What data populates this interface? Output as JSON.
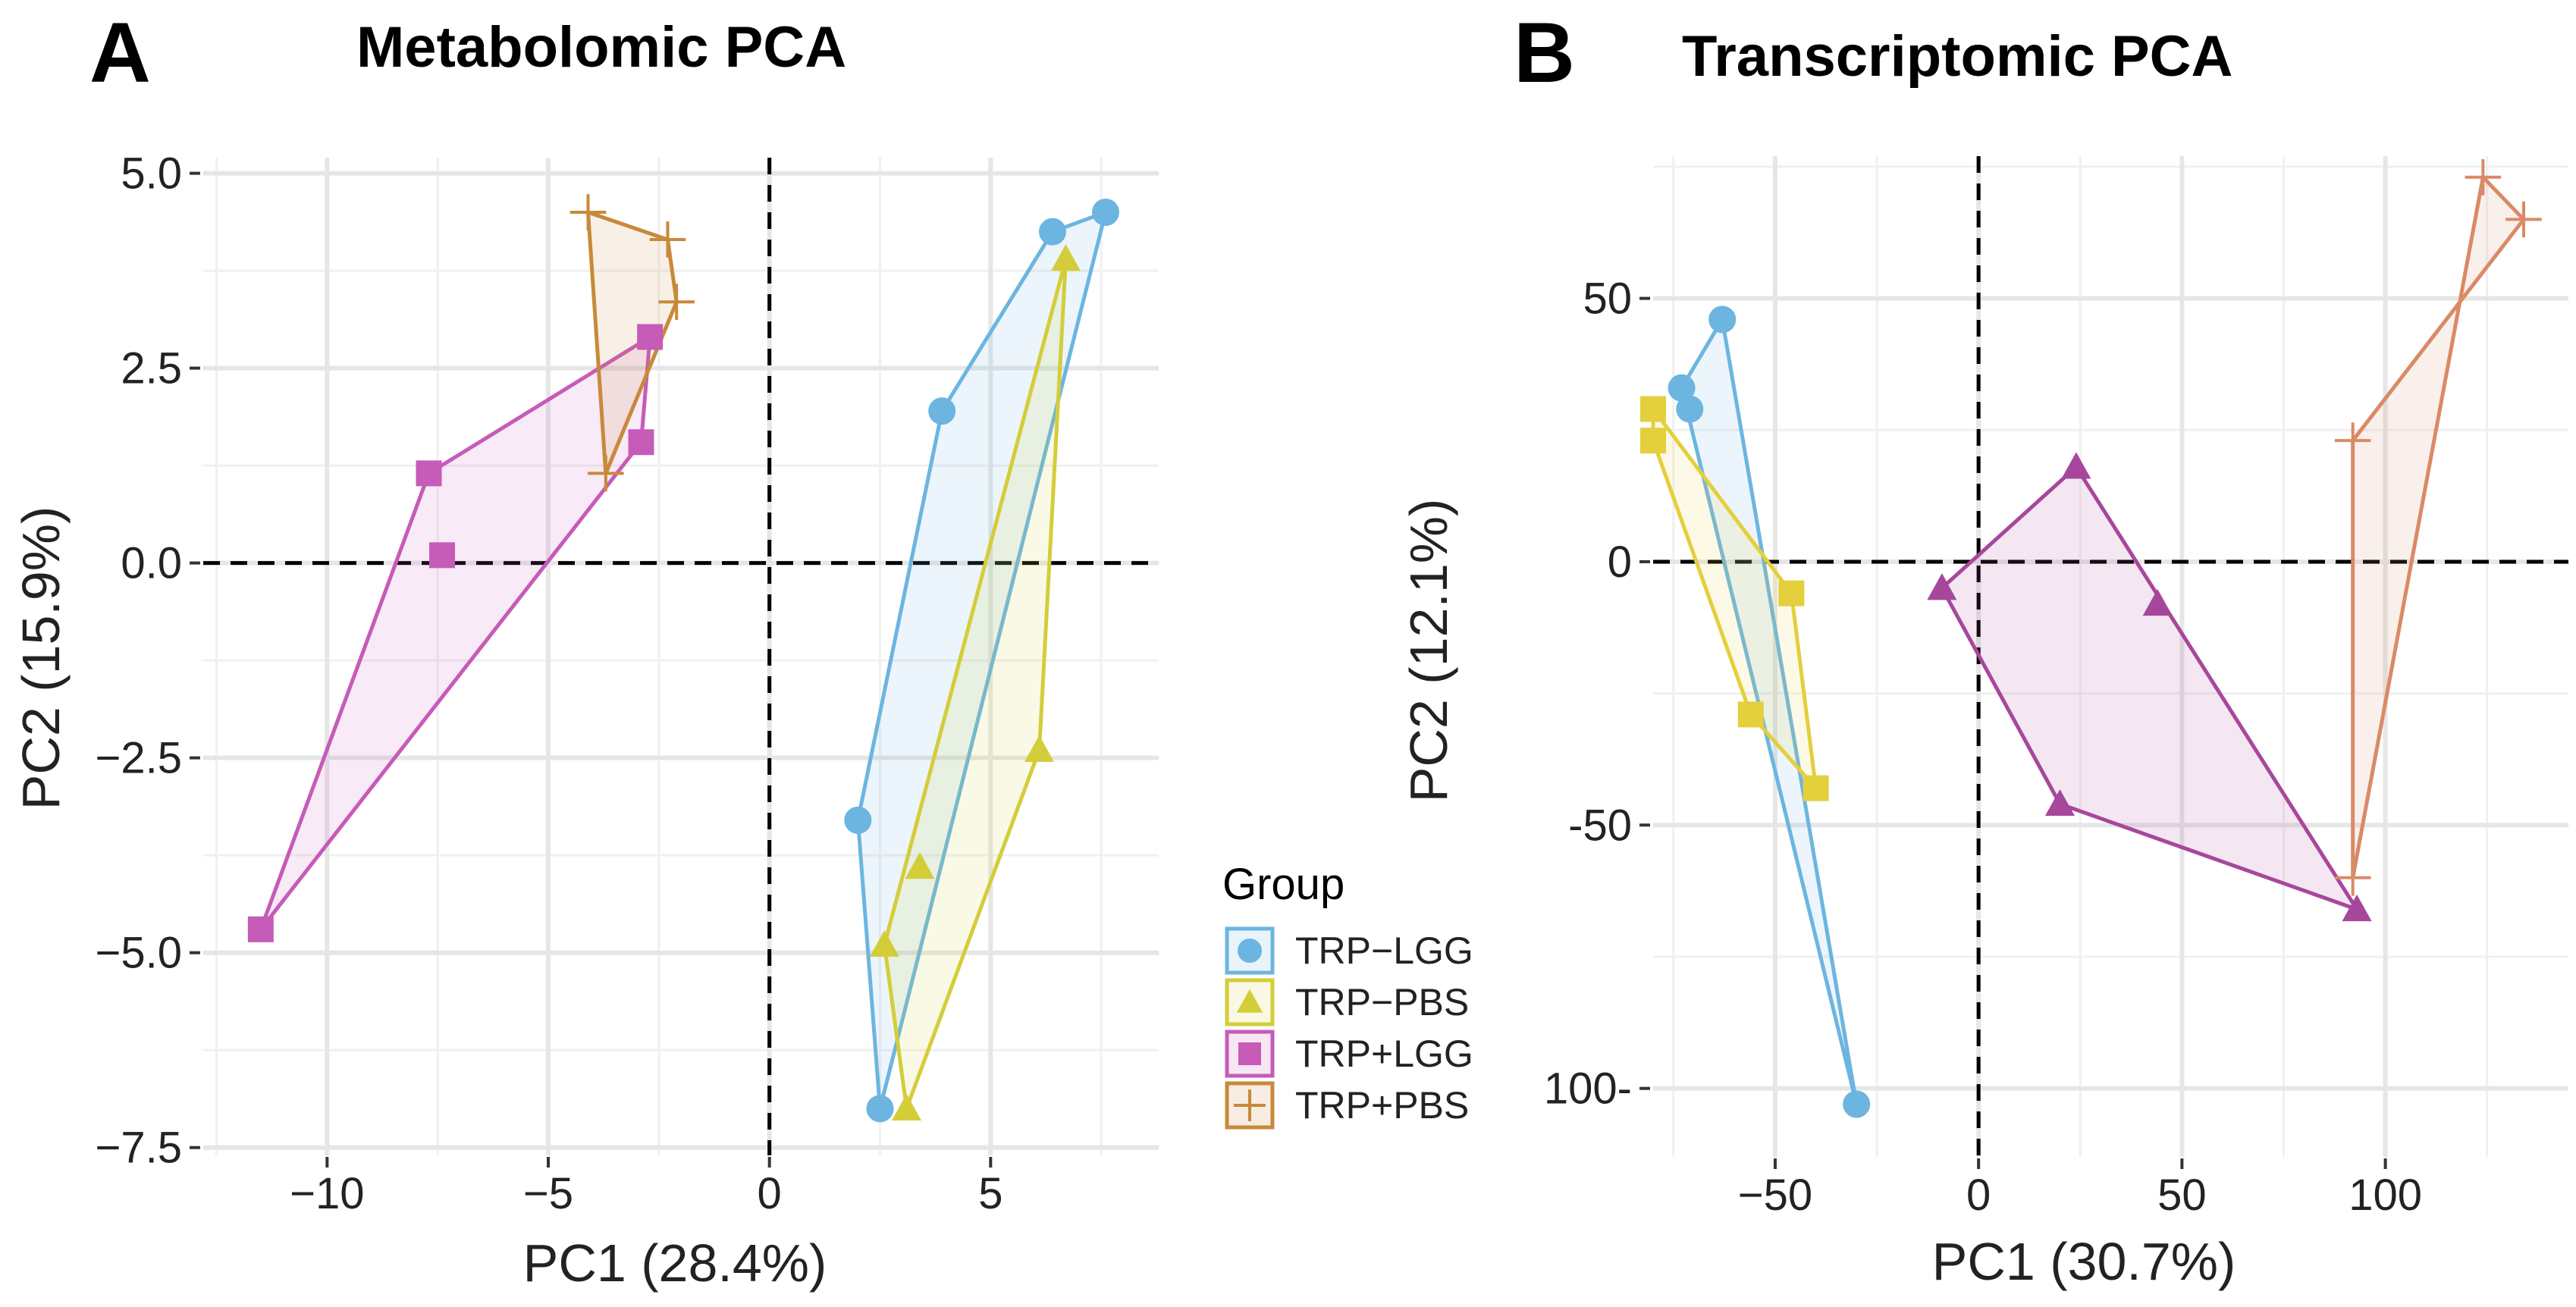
{
  "colors": {
    "TRP-LGG": "#6cb5e0",
    "TRP-PBS": "#d4cd3a",
    "TRP+LGG": "#c65bb8",
    "TRP+PBS": "#c8893a",
    "transcriptomic": {
      "TRP-LGG": "#6cb5e0",
      "TRP-PBS": "#e4cf3c",
      "TRP+LGG": "#a7479c",
      "TRP+PBS": "#d98a66"
    }
  },
  "legend": {
    "title": "Group",
    "entries": [
      {
        "group": "TRP-LGG",
        "label": "TRP−LGG",
        "shape": "circle"
      },
      {
        "group": "TRP-PBS",
        "label": "TRP−PBS",
        "shape": "triangle"
      },
      {
        "group": "TRP+LGG",
        "label": "TRP+LGG",
        "shape": "square"
      },
      {
        "group": "TRP+PBS",
        "label": "TRP+PBS",
        "shape": "plus"
      }
    ]
  },
  "chart_data": [
    {
      "type": "scatter",
      "panel_letter": "A",
      "title": "Metabolomic PCA",
      "xlabel": "PC1 (28.4%)",
      "ylabel": "PC2 (15.9%)",
      "xlim": [
        -12.8,
        8.8
      ],
      "ylim": [
        -7.6,
        5.2
      ],
      "x_ticks": [
        -10,
        -5,
        0,
        5
      ],
      "x_tick_labels": [
        "−10",
        "−5",
        "0",
        "5"
      ],
      "y_ticks": [
        5.0,
        2.5,
        0.0,
        -2.5,
        -5.0,
        -7.5
      ],
      "y_tick_labels": [
        "5.0",
        "2.5",
        "0.0",
        "−2.5",
        "−5.0",
        "−7.5"
      ],
      "grid": true,
      "zero_lines": true,
      "series": [
        {
          "name": "TRP−LGG",
          "group": "TRP-LGG",
          "shape": "circle",
          "points": [
            [
              6.4,
              4.25
            ],
            [
              7.6,
              4.5
            ],
            [
              3.9,
              1.95
            ],
            [
              2.0,
              -3.3
            ],
            [
              2.5,
              -7.0
            ]
          ],
          "hull": [
            [
              2.5,
              -7.0
            ],
            [
              7.6,
              4.5
            ],
            [
              6.4,
              4.25
            ],
            [
              3.9,
              1.95
            ],
            [
              2.0,
              -3.3
            ]
          ]
        },
        {
          "name": "TRP−PBS",
          "group": "TRP-PBS",
          "shape": "triangle",
          "points": [
            [
              6.7,
              3.9
            ],
            [
              6.1,
              -2.4
            ],
            [
              3.4,
              -3.9
            ],
            [
              2.6,
              -4.9
            ],
            [
              3.1,
              -7.0
            ]
          ],
          "hull": [
            [
              3.1,
              -7.0
            ],
            [
              6.1,
              -2.4
            ],
            [
              6.7,
              3.9
            ],
            [
              2.6,
              -4.9
            ]
          ]
        },
        {
          "name": "TRP+LGG",
          "group": "TRP+LGG",
          "shape": "square",
          "points": [
            [
              -2.7,
              2.9
            ],
            [
              -2.9,
              1.55
            ],
            [
              -7.7,
              1.15
            ],
            [
              -7.4,
              0.1
            ],
            [
              -11.5,
              -4.7
            ]
          ],
          "hull": [
            [
              -11.5,
              -4.7
            ],
            [
              -2.9,
              1.55
            ],
            [
              -2.7,
              2.9
            ],
            [
              -7.7,
              1.15
            ]
          ]
        },
        {
          "name": "TRP+PBS",
          "group": "TRP+PBS",
          "shape": "plus",
          "points": [
            [
              -4.1,
              4.5
            ],
            [
              -2.3,
              4.15
            ],
            [
              -2.1,
              3.35
            ],
            [
              -3.7,
              1.15
            ]
          ],
          "hull": [
            [
              -3.7,
              1.15
            ],
            [
              -2.1,
              3.35
            ],
            [
              -2.3,
              4.15
            ],
            [
              -4.1,
              4.5
            ]
          ]
        }
      ]
    },
    {
      "type": "scatter",
      "panel_letter": "B",
      "title": "Transcriptomic PCA",
      "xlabel": "PC1 (30.7%)",
      "ylabel": "PC2 (12.1%)",
      "xlim": [
        -80,
        145
      ],
      "ylim": [
        -113,
        77
      ],
      "x_ticks": [
        -50,
        0,
        50,
        100
      ],
      "x_tick_labels": [
        "−50",
        "0",
        "50",
        "100"
      ],
      "y_ticks": [
        50,
        0,
        -50,
        -100
      ],
      "y_tick_labels": [
        "50",
        "0",
        "-50",
        "100-"
      ],
      "grid": true,
      "zero_lines": true,
      "series": [
        {
          "name": "TRP−LGG",
          "group": "TRP-LGG",
          "shape": "circle",
          "points": [
            [
              -63,
              46
            ],
            [
              -73,
              33
            ],
            [
              -71,
              29
            ],
            [
              -30,
              -103
            ]
          ],
          "hull": [
            [
              -30,
              -103
            ],
            [
              -63,
              46
            ],
            [
              -73,
              33
            ]
          ]
        },
        {
          "name": "TRP−PBS",
          "group": "TRP-PBS",
          "shape": "square",
          "points": [
            [
              -80,
              29
            ],
            [
              -80,
              23
            ],
            [
              -46,
              -6
            ],
            [
              -56,
              -29
            ],
            [
              -40,
              -43
            ]
          ],
          "hull": [
            [
              -80,
              23
            ],
            [
              -56,
              -29
            ],
            [
              -40,
              -43
            ],
            [
              -46,
              -6
            ],
            [
              -80,
              29
            ]
          ]
        },
        {
          "name": "TRP+LGG",
          "group": "TRP+LGG",
          "shape": "triangle",
          "points": [
            [
              24,
              18
            ],
            [
              -9,
              -5
            ],
            [
              44,
              -8
            ],
            [
              20,
              -46
            ],
            [
              93,
              -66
            ]
          ],
          "hull": [
            [
              -9,
              -5
            ],
            [
              24,
              18
            ],
            [
              93,
              -66
            ],
            [
              20,
              -46
            ]
          ]
        },
        {
          "name": "TRP+PBS",
          "group": "TRP+PBS",
          "shape": "plus",
          "points": [
            [
              124,
              73
            ],
            [
              134,
              65
            ],
            [
              92,
              23
            ],
            [
              92,
              -60
            ]
          ],
          "hull": [
            [
              92,
              -60
            ],
            [
              92,
              23
            ],
            [
              134,
              65
            ],
            [
              124,
              73
            ]
          ]
        }
      ]
    }
  ]
}
